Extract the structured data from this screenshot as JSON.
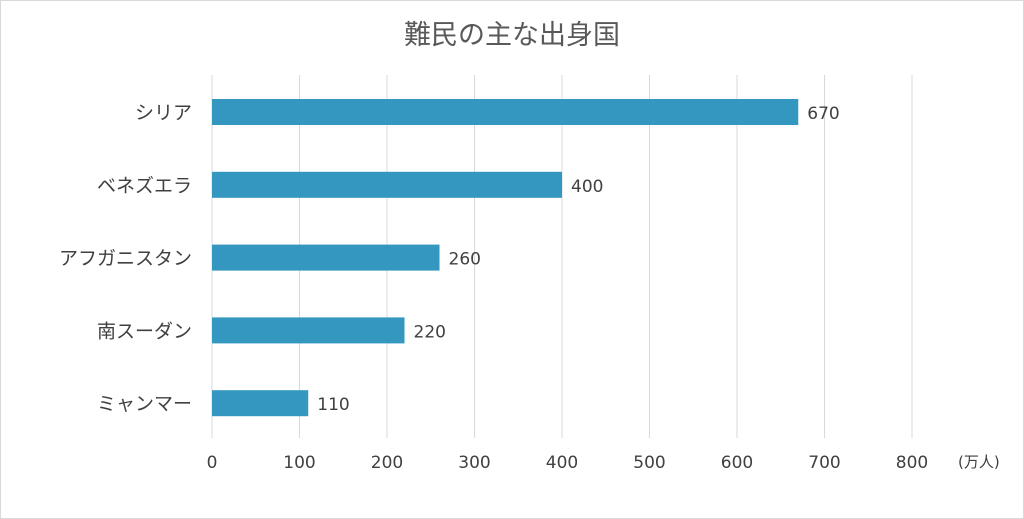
{
  "chart_data": {
    "type": "bar",
    "orientation": "horizontal",
    "title": "難民の主な出身国",
    "categories": [
      "シリア",
      "ベネズエラ",
      "アフガニスタン",
      "南スーダン",
      "ミャンマー"
    ],
    "values": [
      670,
      400,
      260,
      220,
      110
    ],
    "data_labels": [
      "670",
      "400",
      "260",
      "220",
      "110"
    ],
    "xlim": [
      0,
      800
    ],
    "x_ticks": [
      "0",
      "100",
      "200",
      "300",
      "400",
      "500",
      "600",
      "700",
      "800"
    ],
    "unit": "(万人)",
    "bar_color": "#3397bf",
    "grid": true,
    "legend": "none"
  }
}
